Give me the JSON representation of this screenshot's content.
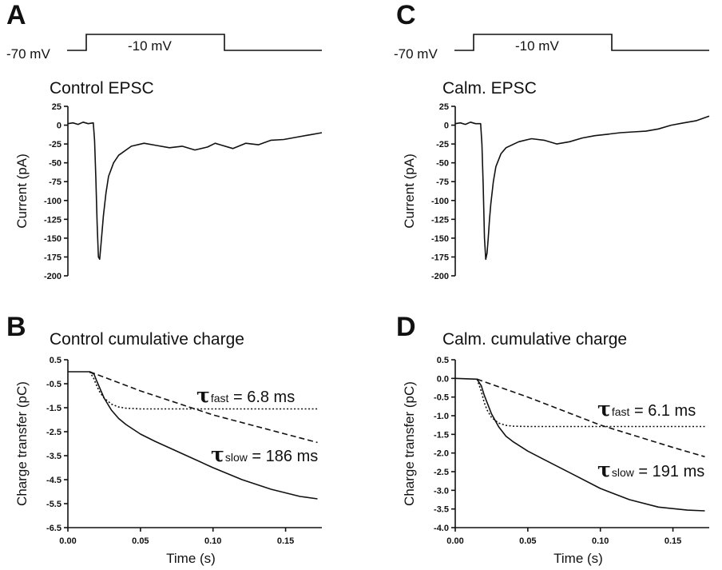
{
  "chart_data": [
    {
      "panel": "A",
      "type": "line",
      "title": "Control EPSC",
      "protocol": {
        "hold_label": "-70 mV",
        "step_label": "-10 mV"
      },
      "ylabel": "Current (pA)",
      "ylim": [
        -200,
        25
      ],
      "yticks": [
        "25",
        "0",
        "-25",
        "-50",
        "-75",
        "-100",
        "-125",
        "-150",
        "-175",
        "-200"
      ],
      "series": [
        {
          "style": "solid",
          "x": [
            0.0,
            0.02,
            0.04,
            0.06,
            0.08,
            0.1,
            0.105,
            0.11,
            0.115,
            0.12,
            0.125,
            0.13,
            0.135,
            0.14,
            0.15,
            0.16,
            0.18,
            0.2,
            0.25,
            0.3,
            0.35,
            0.4,
            0.45,
            0.5,
            0.55,
            0.58,
            0.6,
            0.65,
            0.7,
            0.75,
            0.8,
            0.85,
            0.9,
            0.95,
            1.0
          ],
          "y": [
            2,
            3,
            1,
            4,
            2,
            3,
            -20,
            -70,
            -130,
            -175,
            -178,
            -160,
            -140,
            -120,
            -90,
            -68,
            -50,
            -40,
            -28,
            -24,
            -27,
            -30,
            -28,
            -33,
            -29,
            -24,
            -26,
            -31,
            -24,
            -26,
            -20,
            -19,
            -16,
            -13,
            -10
          ]
        }
      ]
    },
    {
      "panel": "C",
      "type": "line",
      "title": "Calm. EPSC",
      "protocol": {
        "hold_label": "-70 mV",
        "step_label": "-10 mV"
      },
      "ylabel": "Current (pA)",
      "ylim": [
        -200,
        25
      ],
      "yticks": [
        "25",
        "0",
        "-25",
        "-50",
        "-75",
        "-100",
        "-125",
        "-150",
        "-175",
        "-200"
      ],
      "series": [
        {
          "style": "solid",
          "x": [
            0.0,
            0.02,
            0.04,
            0.06,
            0.08,
            0.1,
            0.105,
            0.11,
            0.115,
            0.12,
            0.125,
            0.13,
            0.135,
            0.14,
            0.15,
            0.16,
            0.18,
            0.2,
            0.25,
            0.3,
            0.35,
            0.4,
            0.45,
            0.5,
            0.55,
            0.6,
            0.65,
            0.7,
            0.75,
            0.8,
            0.85,
            0.9,
            0.95,
            1.0
          ],
          "y": [
            2,
            3,
            1,
            4,
            2,
            2,
            -25,
            -80,
            -150,
            -178,
            -170,
            -150,
            -125,
            -105,
            -75,
            -55,
            -38,
            -30,
            -22,
            -18,
            -20,
            -25,
            -22,
            -17,
            -14,
            -12,
            -10,
            -9,
            -8,
            -5,
            0,
            3,
            6,
            12
          ]
        }
      ]
    },
    {
      "panel": "B",
      "type": "line",
      "title": "Control cumulative charge",
      "xlabel": "Time  (s)",
      "ylabel": "Charge transfer (pC)",
      "xlim": [
        0,
        0.175
      ],
      "ylim": [
        -6.5,
        0.5
      ],
      "xticks": [
        "0.00",
        "0.05",
        "0.10",
        "0.15"
      ],
      "yticks": [
        "0.5",
        "-0.5",
        "-1.5",
        "-2.5",
        "-3.5",
        "-4.5",
        "-5.5",
        "-6.5"
      ],
      "annotations": [
        {
          "sym": "τ",
          "sub": "fast",
          "text": " = 6.8 ms"
        },
        {
          "sym": "τ",
          "sub": "slow",
          "text": " = 186 ms"
        }
      ],
      "series": [
        {
          "style": "solid",
          "x": [
            0,
            0.015,
            0.018,
            0.02,
            0.025,
            0.03,
            0.035,
            0.04,
            0.05,
            0.06,
            0.08,
            0.1,
            0.12,
            0.14,
            0.16,
            0.172
          ],
          "y": [
            0,
            0,
            -0.1,
            -0.4,
            -1.1,
            -1.6,
            -1.95,
            -2.2,
            -2.6,
            -2.9,
            -3.45,
            -4.0,
            -4.5,
            -4.9,
            -5.2,
            -5.3
          ]
        },
        {
          "style": "dotted",
          "x": [
            0.015,
            0.018,
            0.02,
            0.022,
            0.025,
            0.03,
            0.035,
            0.04,
            0.05,
            0.172
          ],
          "y": [
            0,
            -0.3,
            -0.6,
            -0.85,
            -1.1,
            -1.35,
            -1.47,
            -1.52,
            -1.55,
            -1.55
          ]
        },
        {
          "style": "dashed",
          "x": [
            0.015,
            0.05,
            0.1,
            0.15,
            0.172
          ],
          "y": [
            0,
            -0.8,
            -1.8,
            -2.6,
            -2.95
          ]
        }
      ]
    },
    {
      "panel": "D",
      "type": "line",
      "title": "Calm. cumulative charge",
      "xlabel": "Time  (s)",
      "ylabel": "Charge transfer (pC)",
      "xlim": [
        0,
        0.175
      ],
      "ylim": [
        -4.0,
        0.5
      ],
      "xticks": [
        "0.00",
        "0.05",
        "0.10",
        "0.15"
      ],
      "yticks": [
        "0.5",
        "0.0",
        "-0.5",
        "-1.0",
        "-1.5",
        "-2.0",
        "-2.5",
        "-3.0",
        "-3.5",
        "-4.0"
      ],
      "annotations": [
        {
          "sym": "τ",
          "sub": "fast",
          "text": " = 6.1 ms"
        },
        {
          "sym": "τ",
          "sub": "slow",
          "text": " = 191 ms"
        }
      ],
      "series": [
        {
          "style": "solid",
          "x": [
            0,
            0.015,
            0.018,
            0.02,
            0.025,
            0.03,
            0.035,
            0.04,
            0.05,
            0.06,
            0.08,
            0.1,
            0.12,
            0.14,
            0.16,
            0.172
          ],
          "y": [
            0,
            -0.02,
            -0.2,
            -0.45,
            -0.95,
            -1.3,
            -1.55,
            -1.7,
            -1.95,
            -2.15,
            -2.55,
            -2.95,
            -3.25,
            -3.45,
            -3.53,
            -3.55
          ]
        },
        {
          "style": "dotted",
          "x": [
            0.015,
            0.018,
            0.02,
            0.022,
            0.025,
            0.03,
            0.035,
            0.04,
            0.05,
            0.172
          ],
          "y": [
            -0.02,
            -0.35,
            -0.65,
            -0.85,
            -1.05,
            -1.2,
            -1.26,
            -1.28,
            -1.29,
            -1.29
          ]
        },
        {
          "style": "dashed",
          "x": [
            0.015,
            0.05,
            0.1,
            0.15,
            0.172
          ],
          "y": [
            -0.02,
            -0.5,
            -1.25,
            -1.85,
            -2.1
          ]
        }
      ]
    }
  ]
}
